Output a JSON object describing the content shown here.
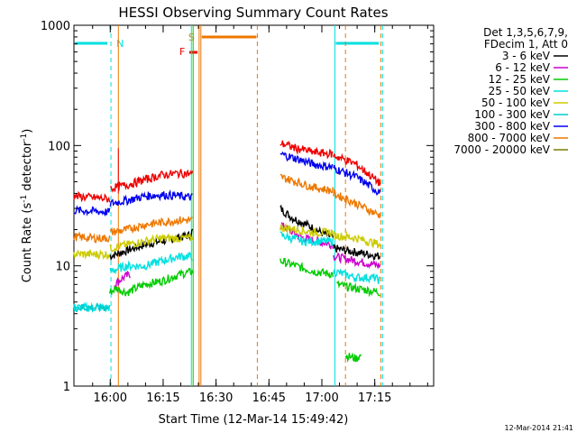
{
  "chart_data": {
    "type": "line",
    "title": "HESSI Observing Summary Count Rates",
    "xlabel": "Start Time (12-Mar-14 15:49:42)",
    "ylabel_main": "Count Rate (s",
    "ylabel_sup1": "-1",
    "ylabel_mid": " detector",
    "ylabel_sup2": "-1",
    "ylabel_end": ")",
    "x_unit": "minutes after 15:49:42",
    "xlim": [
      0,
      102
    ],
    "ylim": [
      1,
      1000
    ],
    "yscale": "log",
    "x_ticks": [
      {
        "x": 10.3,
        "label": "16:00"
      },
      {
        "x": 25.3,
        "label": "16:15"
      },
      {
        "x": 40.3,
        "label": "16:30"
      },
      {
        "x": 55.3,
        "label": "16:45"
      },
      {
        "x": 70.3,
        "label": "17:00"
      },
      {
        "x": 85.3,
        "label": "17:15"
      }
    ],
    "y_ticks": [
      {
        "y": 1,
        "label": "1"
      },
      {
        "y": 10,
        "label": "10"
      },
      {
        "y": 100,
        "label": "100"
      },
      {
        "y": 1000,
        "label": "1000"
      }
    ],
    "legend_header": [
      "Det 1,3,5,6,7,9,",
      "FDecim 1, Att 0"
    ],
    "legend_position": "right",
    "series": [
      {
        "name": "3 - 6 keV",
        "color": "#000000",
        "segments": [
          {
            "x": [
              0,
              10,
              10.1,
              20,
              33,
              33.8
            ],
            "y": [
              null,
              null,
              12,
              15,
              18,
              20
            ]
          },
          {
            "x": [
              58.5,
              62,
              66,
              70,
              72,
              73.5
            ],
            "y": [
              30,
              25,
              22,
              19,
              18,
              17
            ]
          },
          {
            "x": [
              73.6,
              80,
              87
            ],
            "y": [
              14,
              13,
              12
            ]
          }
        ]
      },
      {
        "name": "6 - 12 keV",
        "color": "#cc00cc",
        "segments": [
          {
            "x": [
              11.5,
              14,
              16
            ],
            "y": [
              7,
              8,
              8.5
            ]
          },
          {
            "x": [
              58.5,
              65,
              73.5
            ],
            "y": [
              22,
              17,
              15
            ]
          },
          {
            "x": [
              73.6,
              80,
              87
            ],
            "y": [
              12,
              11,
              10
            ]
          }
        ]
      },
      {
        "name": "12 - 25 keV",
        "color": "#00cc00",
        "segments": [
          {
            "x": [
              10,
              12,
              15,
              20,
              25,
              30,
              33.8
            ],
            "y": [
              6,
              6.5,
              6,
              7,
              7.5,
              8.5,
              9
            ]
          },
          {
            "x": [
              58.5,
              63,
              68,
              73.5
            ],
            "y": [
              11,
              10,
              9,
              8.5
            ]
          },
          {
            "x": [
              74.5,
              80,
              87
            ],
            "y": [
              7,
              6.5,
              6
            ]
          },
          {
            "x": [
              77,
              80,
              81.5
            ],
            "y": [
              1.8,
              1.7,
              1.8
            ]
          }
        ]
      },
      {
        "name": "25 - 50 keV",
        "color": "#00e0e0",
        "segments": [
          {
            "x": [
              0,
              5,
              10.2
            ],
            "y": [
              4.5,
              4.5,
              4.5
            ]
          },
          {
            "x": [
              10.3,
              15,
              20,
              25,
              30,
              33.8
            ],
            "y": [
              9,
              10,
              10,
              11,
              12,
              12
            ]
          },
          {
            "x": [
              58.5,
              65,
              73.5
            ],
            "y": [
              18,
              16,
              16
            ]
          },
          {
            "x": [
              73.6,
              80,
              85,
              87
            ],
            "y": [
              9,
              8,
              8,
              7.5
            ]
          }
        ]
      },
      {
        "name": "50 - 100 keV",
        "color": "#cccc00",
        "segments": [
          {
            "x": [
              0,
              5,
              10.2
            ],
            "y": [
              12.5,
              12.5,
              12.5
            ]
          },
          {
            "x": [
              10.3,
              15,
              20,
              25,
              30,
              33.8
            ],
            "y": [
              14,
              15,
              16,
              17,
              17,
              17
            ]
          },
          {
            "x": [
              58.5,
              63,
              68,
              73.5
            ],
            "y": [
              21,
              20,
              19,
              19
            ]
          },
          {
            "x": [
              73.6,
              80,
              87
            ],
            "y": [
              18,
              17,
              15
            ]
          }
        ]
      },
      {
        "name": "100 - 300 keV",
        "color": "#00cccc",
        "segments": [
          {
            "x": [
              0,
              5,
              10.2
            ],
            "y": [
              4.5,
              4.5,
              4.5
            ]
          }
        ]
      },
      {
        "name": "300 - 800 keV",
        "color": "#0000ee",
        "segments": [
          {
            "x": [
              0,
              5,
              10.2
            ],
            "y": [
              29,
              28.5,
              28
            ]
          },
          {
            "x": [
              10.3,
              15,
              20,
              25,
              30,
              33.8
            ],
            "y": [
              33,
              35,
              38,
              39,
              38,
              37
            ]
          },
          {
            "x": [
              58.5,
              63,
              68,
              73.5
            ],
            "y": [
              85,
              78,
              70,
              66
            ]
          },
          {
            "x": [
              73.6,
              80,
              87
            ],
            "y": [
              65,
              55,
              40
            ]
          }
        ]
      },
      {
        "name": "800 - 7000 keV",
        "color": "#ee7700",
        "segments": [
          {
            "x": [
              0,
              5,
              10.2
            ],
            "y": [
              17.5,
              17,
              17
            ]
          },
          {
            "x": [
              10.3,
              15,
              20,
              25,
              30,
              33.8
            ],
            "y": [
              19,
              20,
              22,
              23,
              24,
              24
            ]
          },
          {
            "x": [
              58.5,
              63,
              68,
              73.5
            ],
            "y": [
              55,
              50,
              45,
              42
            ]
          },
          {
            "x": [
              73.6,
              80,
              87
            ],
            "y": [
              40,
              33,
              26
            ]
          }
        ]
      },
      {
        "name": "7000 - 20000 keV",
        "color": "#7a7a00",
        "segments": []
      },
      {
        "name": "",
        "color": "#ee0000",
        "segments": [
          {
            "x": [
              0,
              5,
              10.2
            ],
            "y": [
              38,
              37,
              36
            ]
          },
          {
            "x": [
              10.3,
              15,
              20,
              25,
              30,
              33.8
            ],
            "y": [
              44,
              47,
              52,
              57,
              59,
              58
            ]
          },
          {
            "x": [
              58.5,
              63,
              68,
              73.5
            ],
            "y": [
              105,
              95,
              88,
              85
            ]
          },
          {
            "x": [
              73.6,
              80,
              87
            ],
            "y": [
              83,
              70,
              48
            ]
          }
        ]
      }
    ],
    "spikes": [
      {
        "x": 12.6,
        "y0": 40,
        "y1": 95,
        "color": "#ee0000"
      }
    ],
    "night_intervals": [
      {
        "x0": 0,
        "x1": 10.5,
        "label": "N",
        "color": "#00e0e0"
      },
      {
        "x0": 74.0,
        "x1": 87.5,
        "label": "",
        "color": "#00e0e0"
      }
    ],
    "saa_intervals": [
      {
        "x0": 36.0,
        "x1": 52.0,
        "label": "S",
        "color": "#ee7700"
      }
    ],
    "flare_marker": {
      "label": "F",
      "x": 33.5,
      "y": 470,
      "color": "#ee0000"
    },
    "cyan_verticals": [
      {
        "x": 33.3,
        "style": "solid"
      },
      {
        "x": 74.0,
        "style": "solid"
      },
      {
        "x": 10.5,
        "style": "dashed"
      },
      {
        "x": 87.5,
        "style": "dashed"
      }
    ],
    "orange_verticals": [
      {
        "x": 12.6,
        "style": "solid"
      },
      {
        "x": 35.5,
        "style": "solid"
      },
      {
        "x": 36.0,
        "style": "solid"
      },
      {
        "x": 52.0,
        "style": "dashed"
      },
      {
        "x": 77.0,
        "style": "dashed"
      },
      {
        "x": 87.0,
        "style": "dashed"
      }
    ],
    "green_verticals": [
      {
        "x": 33.8,
        "style": "solid"
      }
    ]
  },
  "footer_timestamp": "12-Mar-2014 21:41"
}
